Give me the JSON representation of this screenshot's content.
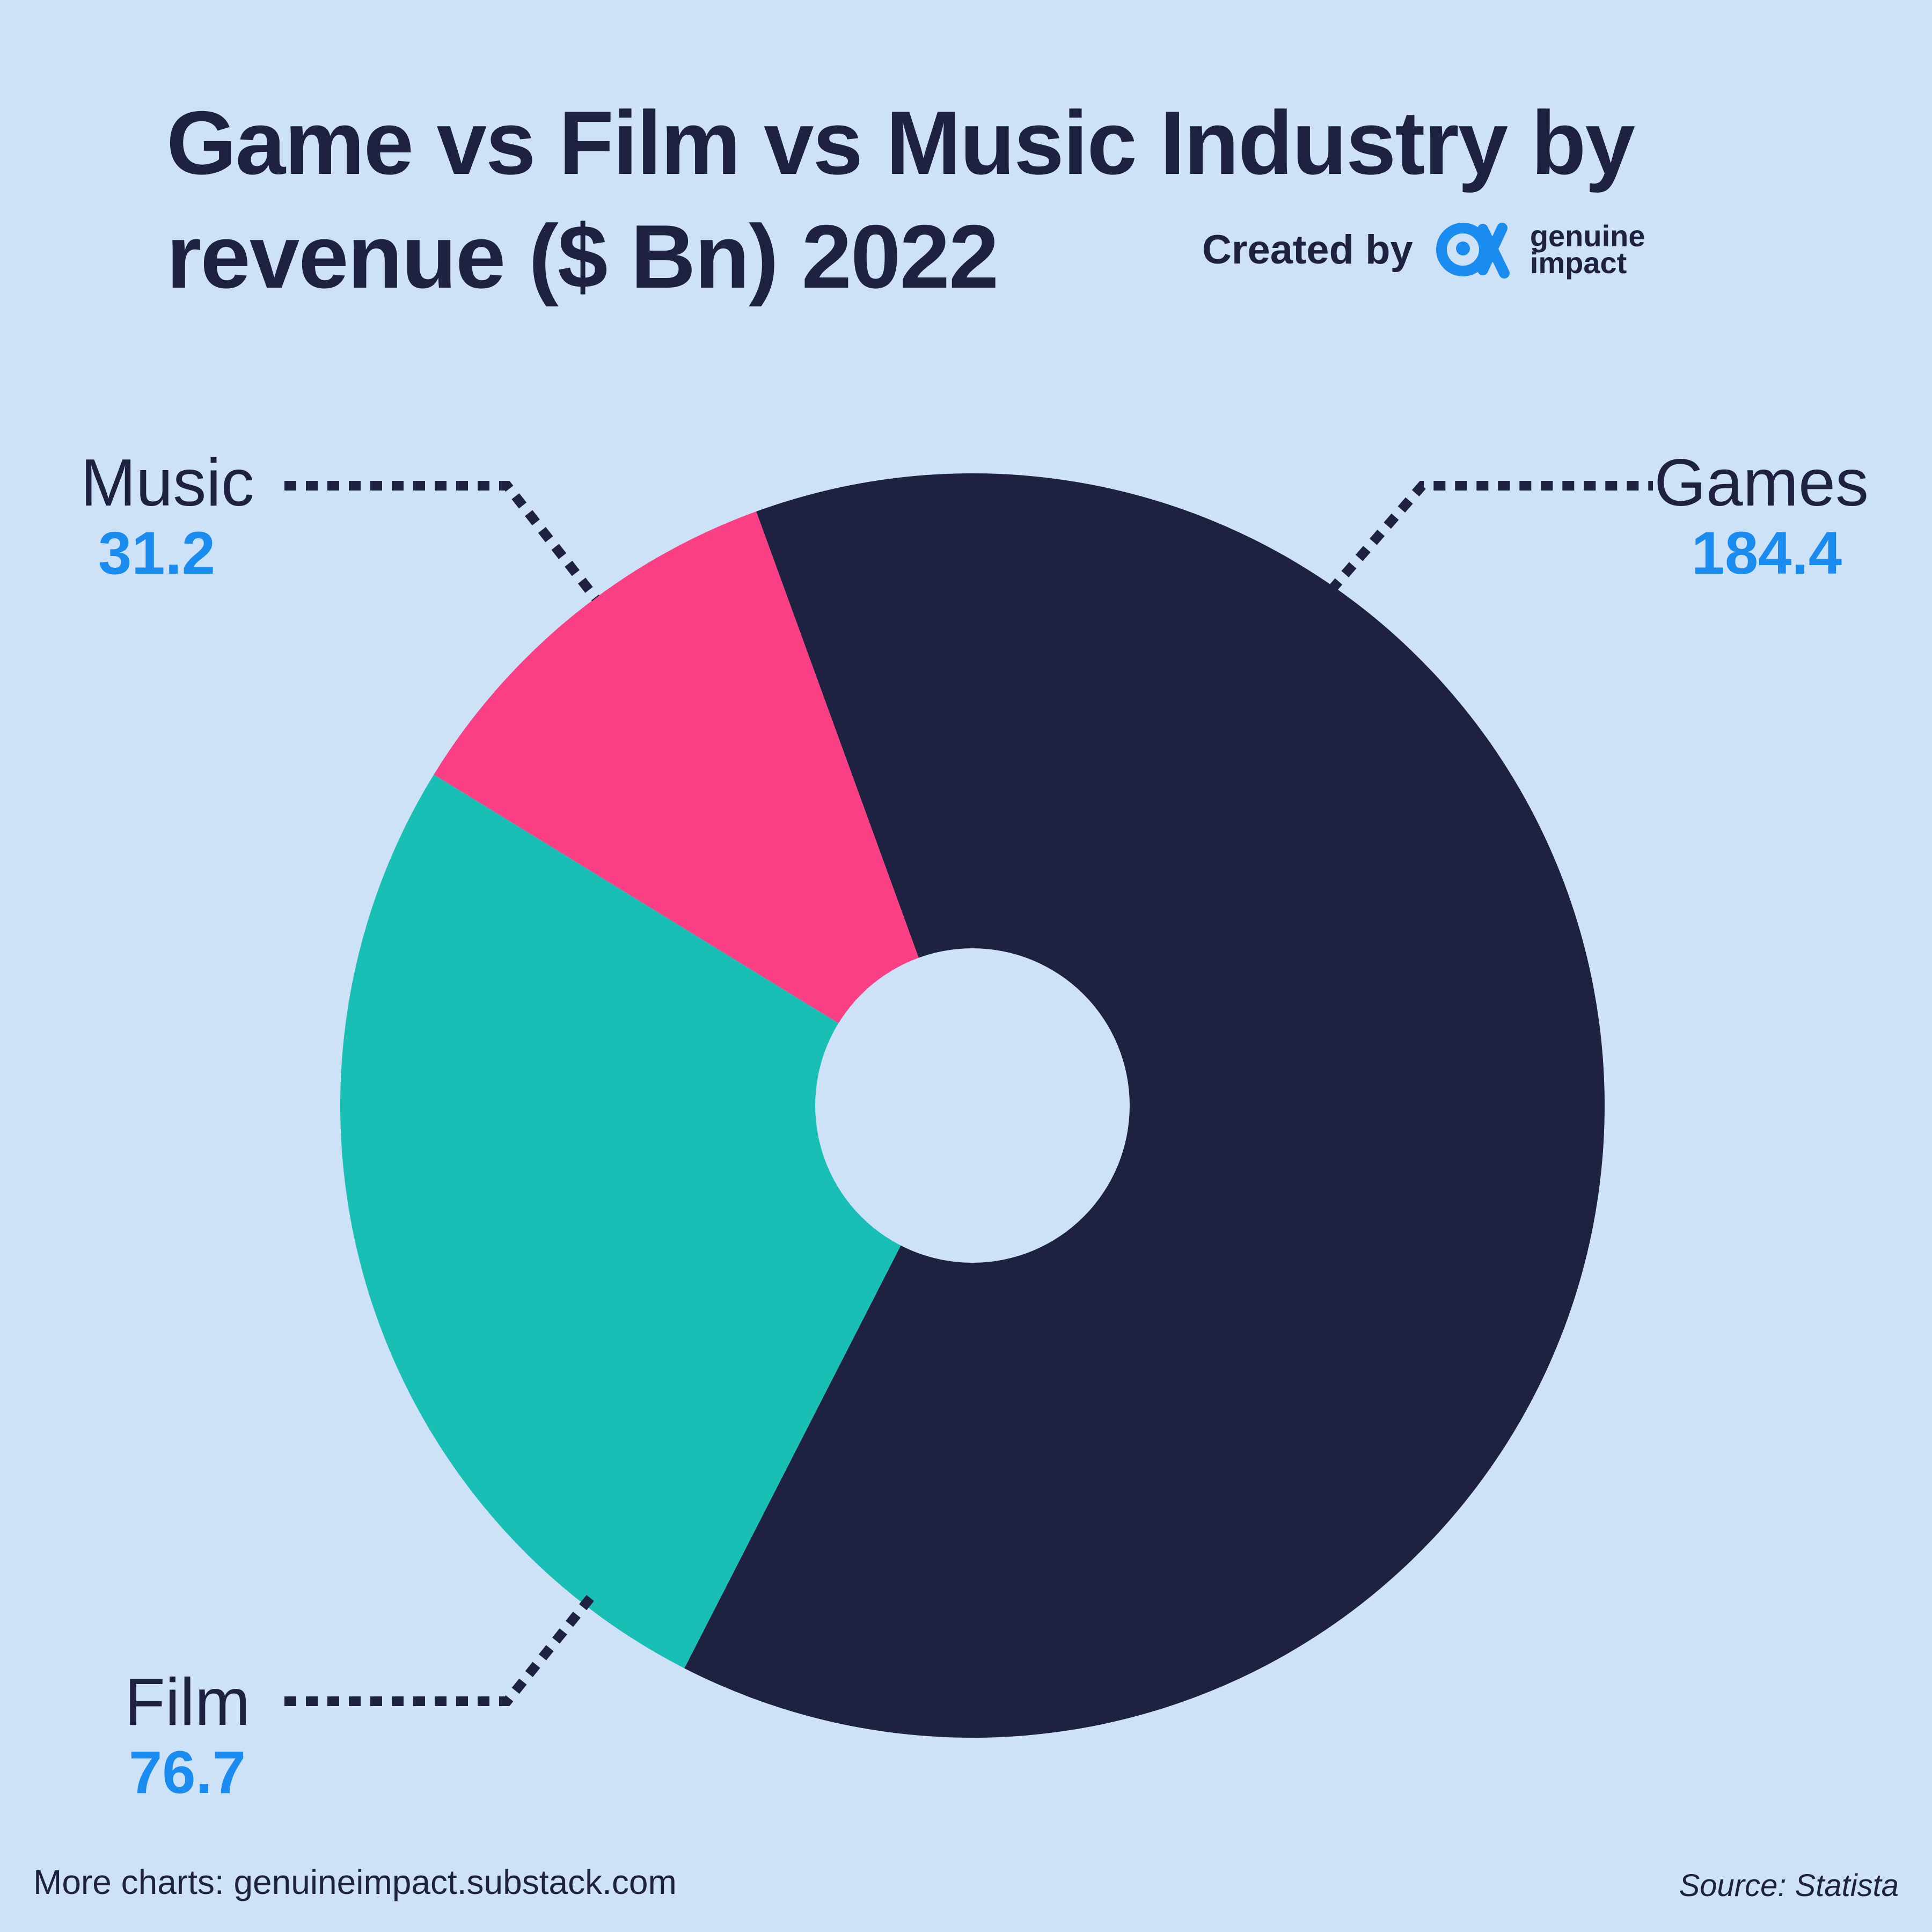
{
  "title": "Game vs Film vs Music Industry by revenue ($ Bn) 2022",
  "credit": {
    "prefix": "Created by",
    "brand_line1": "genuine",
    "brand_line2": "impact",
    "logo_icon": "genuine-impact-logo-icon"
  },
  "footer": {
    "more_charts": "More charts: genuineimpact.substack.com",
    "source": "Source: Statista"
  },
  "colors": {
    "background": "#cde1f7",
    "games": "#1e2140",
    "film": "#19bfb5",
    "music": "#fa3f84",
    "value_text": "#1a8cf0",
    "text": "#1e2140"
  },
  "chart_data": {
    "type": "pie",
    "variant": "donut",
    "title": "Game vs Film vs Music Industry by revenue ($ Bn) 2022",
    "unit": "$ Bn",
    "slices": [
      {
        "name": "Games",
        "value": 184.4,
        "display": "184.4",
        "color": "#1e2140"
      },
      {
        "name": "Film",
        "value": 76.7,
        "display": "76.7",
        "color": "#19bfb5"
      },
      {
        "name": "Music",
        "value": 31.2,
        "display": "31.2",
        "color": "#fa3f84"
      }
    ]
  }
}
